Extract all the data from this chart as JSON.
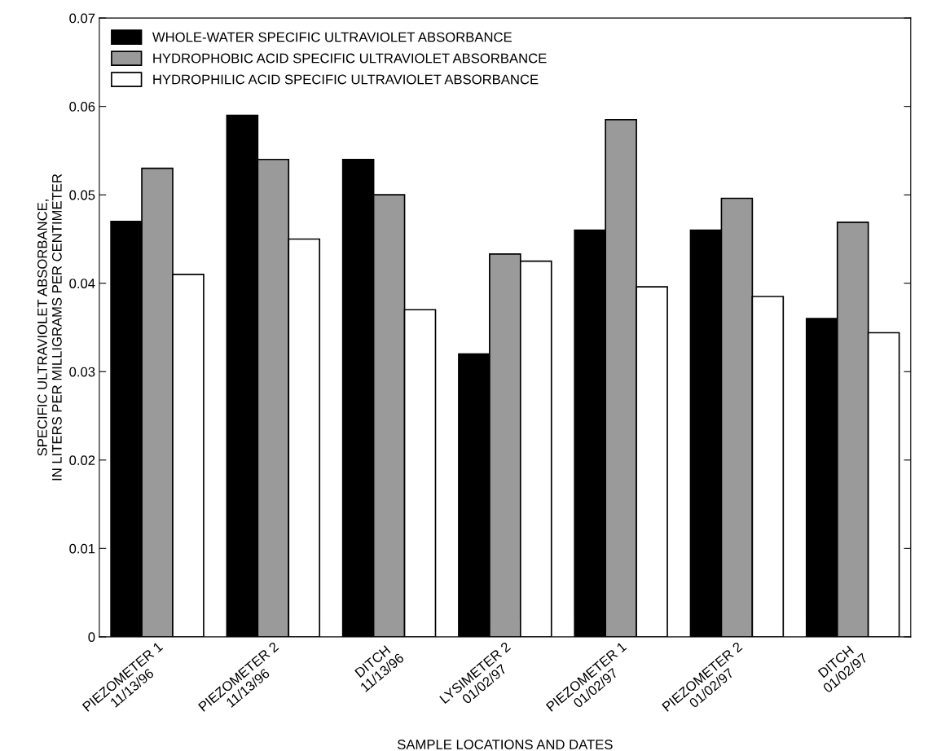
{
  "chart_data": {
    "type": "bar",
    "xlabel": "SAMPLE LOCATIONS AND DATES",
    "ylabel": "SPECIFIC ULTRAVIOLET ABSORBANCE,\nIN LITERS PER MILLIGRAMS PER CENTIMETER",
    "categories": [
      "PIEZOMETER 1\n11/13/96",
      "PIEZOMETER 2\n11/13/96",
      "DITCH\n11/13/96",
      "LYSIMETER 2\n01/02/97",
      "PIEZOMETER 1\n01/02/97",
      "PIEZOMETER 2\n01/02/97",
      "DITCH\n01/02/97"
    ],
    "series": [
      {
        "name": "WHOLE-WATER SPECIFIC ULTRAVIOLET ABSORBANCE",
        "color": "#000000",
        "values": [
          0.047,
          0.059,
          0.054,
          0.032,
          0.046,
          0.046,
          0.036
        ]
      },
      {
        "name": "HYDROPHOBIC ACID SPECIFIC ULTRAVIOLET ABSORBANCE",
        "color": "#9a9a9a",
        "values": [
          0.053,
          0.054,
          0.05,
          0.0433,
          0.0585,
          0.0496,
          0.0469
        ]
      },
      {
        "name": "HYDROPHILIC ACID SPECIFIC ULTRAVIOLET ABSORBANCE",
        "color": "#ffffff",
        "values": [
          0.041,
          0.045,
          0.037,
          0.0425,
          0.0396,
          0.0385,
          0.0344
        ]
      }
    ],
    "ylim": [
      0,
      0.07
    ],
    "yticks": [
      {
        "value": 0,
        "label": "0"
      },
      0.01,
      0.02,
      0.03,
      0.04,
      0.05,
      0.06,
      0.07
    ],
    "grid": false,
    "legend": "top left"
  }
}
